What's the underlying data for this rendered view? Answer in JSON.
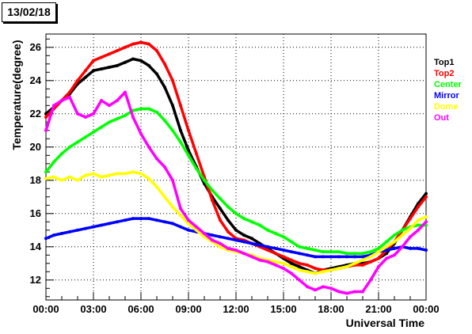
{
  "header": {
    "date": "13/02/18"
  },
  "chart_data": {
    "type": "scatter",
    "xlabel": "Universal Time",
    "ylabel": "Temperature(degree)",
    "xlim": [
      0,
      24
    ],
    "ylim": [
      10.8,
      26.8
    ],
    "grid": true,
    "legend_position": "right",
    "x_ticks": [
      0,
      3,
      6,
      9,
      12,
      15,
      18,
      21,
      24
    ],
    "x_tick_labels": [
      "00:00",
      "03:00",
      "06:00",
      "09:00",
      "12:00",
      "15:00",
      "18:00",
      "21:00",
      "00:00"
    ],
    "y_ticks": [
      12,
      14,
      16,
      18,
      20,
      22,
      24,
      26
    ],
    "y_tick_labels": [
      "12",
      "14",
      "16",
      "18",
      "20",
      "22",
      "24",
      "26"
    ],
    "series": [
      {
        "name": "Top1",
        "color": "#000000",
        "x": [
          0,
          0.5,
          1,
          1.5,
          2,
          2.5,
          3,
          3.5,
          4,
          4.5,
          5,
          5.5,
          6,
          6.5,
          7,
          7.5,
          8,
          8.5,
          9,
          9.5,
          10,
          10.5,
          11,
          11.5,
          12,
          12.5,
          13,
          13.5,
          14,
          14.5,
          15,
          15.5,
          16,
          16.5,
          17,
          17.5,
          18,
          18.5,
          19,
          19.5,
          20,
          20.5,
          21,
          21.5,
          22,
          22.5,
          23,
          23.5,
          24
        ],
        "y": [
          22.0,
          22.4,
          22.8,
          23.2,
          23.8,
          24.2,
          24.6,
          24.7,
          24.8,
          24.9,
          25.1,
          25.3,
          25.2,
          24.9,
          24.4,
          23.6,
          22.5,
          21.0,
          19.8,
          18.8,
          17.8,
          17.0,
          16.3,
          15.6,
          15.0,
          14.7,
          14.5,
          14.2,
          13.9,
          13.6,
          13.3,
          13.0,
          12.8,
          12.6,
          12.4,
          12.6,
          12.7,
          12.8,
          12.9,
          13.0,
          13.0,
          13.1,
          13.3,
          13.6,
          14.2,
          15.0,
          15.8,
          16.6,
          17.2
        ]
      },
      {
        "name": "Top2",
        "color": "#ff0000",
        "x": [
          0,
          0.5,
          1,
          1.5,
          2,
          2.5,
          3,
          3.5,
          4,
          4.5,
          5,
          5.5,
          6,
          6.5,
          7,
          7.5,
          8,
          8.5,
          9,
          9.5,
          10,
          10.5,
          11,
          11.5,
          12,
          12.5,
          13,
          13.5,
          14,
          14.5,
          15,
          15.5,
          16,
          16.5,
          17,
          17.5,
          18,
          18.5,
          19,
          19.5,
          20,
          20.5,
          21,
          21.5,
          22,
          22.5,
          23,
          23.5,
          24
        ],
        "y": [
          21.8,
          22.3,
          22.8,
          23.3,
          24.0,
          24.6,
          25.2,
          25.4,
          25.6,
          25.8,
          26.0,
          26.2,
          26.3,
          26.2,
          25.8,
          25.0,
          24.0,
          22.5,
          21.0,
          19.6,
          18.2,
          16.8,
          15.6,
          14.9,
          14.5,
          14.4,
          14.2,
          14.0,
          13.8,
          13.6,
          13.4,
          13.2,
          13.0,
          12.9,
          12.7,
          12.6,
          12.6,
          12.7,
          12.8,
          12.9,
          12.9,
          13.1,
          13.3,
          13.8,
          14.3,
          15.0,
          15.7,
          16.4,
          17.0
        ]
      },
      {
        "name": "Center",
        "color": "#00ff00",
        "x": [
          0,
          0.5,
          1,
          1.5,
          2,
          2.5,
          3,
          3.5,
          4,
          4.5,
          5,
          5.5,
          6,
          6.5,
          7,
          7.5,
          8,
          8.5,
          9,
          9.5,
          10,
          10.5,
          11,
          11.5,
          12,
          12.5,
          13,
          13.5,
          14,
          14.5,
          15,
          15.5,
          16,
          16.5,
          17,
          17.5,
          18,
          18.5,
          19,
          19.5,
          20,
          20.5,
          21,
          21.5,
          22,
          22.5,
          23,
          23.5,
          24
        ],
        "y": [
          18.5,
          19.1,
          19.6,
          20.0,
          20.3,
          20.6,
          20.9,
          21.2,
          21.5,
          21.7,
          21.9,
          22.2,
          22.3,
          22.3,
          22.1,
          21.6,
          21.0,
          20.3,
          19.5,
          18.7,
          18.0,
          17.4,
          16.9,
          16.4,
          16.0,
          15.7,
          15.5,
          15.3,
          15.0,
          14.8,
          14.6,
          14.3,
          14.0,
          13.9,
          13.8,
          13.7,
          13.7,
          13.7,
          13.6,
          13.6,
          13.6,
          13.7,
          13.9,
          14.3,
          14.7,
          15.0,
          15.2,
          15.3,
          15.3
        ]
      },
      {
        "name": "Mirror",
        "color": "#0000ff",
        "x": [
          0,
          0.5,
          1,
          1.5,
          2,
          2.5,
          3,
          3.5,
          4,
          4.5,
          5,
          5.5,
          6,
          6.5,
          7,
          7.5,
          8,
          8.5,
          9,
          9.5,
          10,
          10.5,
          11,
          11.5,
          12,
          12.5,
          13,
          13.5,
          14,
          14.5,
          15,
          15.5,
          16,
          16.5,
          17,
          17.5,
          18,
          18.5,
          19,
          19.5,
          20,
          20.5,
          21,
          21.5,
          22,
          22.5,
          23,
          23.5,
          24
        ],
        "y": [
          14.5,
          14.7,
          14.8,
          14.9,
          15.0,
          15.1,
          15.2,
          15.3,
          15.4,
          15.5,
          15.6,
          15.7,
          15.7,
          15.7,
          15.6,
          15.5,
          15.4,
          15.2,
          15.0,
          14.9,
          14.8,
          14.7,
          14.6,
          14.5,
          14.4,
          14.3,
          14.2,
          14.1,
          14.0,
          13.9,
          13.8,
          13.7,
          13.6,
          13.5,
          13.4,
          13.4,
          13.4,
          13.4,
          13.4,
          13.4,
          13.4,
          13.5,
          13.7,
          13.8,
          13.9,
          14.0,
          13.9,
          13.9,
          13.8
        ]
      },
      {
        "name": "Dome",
        "color": "#ffff00",
        "x": [
          0,
          0.5,
          1,
          1.5,
          2,
          2.5,
          3,
          3.5,
          4,
          4.5,
          5,
          5.5,
          6,
          6.5,
          7,
          7.5,
          8,
          8.5,
          9,
          9.5,
          10,
          10.5,
          11,
          11.5,
          12,
          12.5,
          13,
          13.5,
          14,
          14.5,
          15,
          15.5,
          16,
          16.5,
          17,
          17.5,
          18,
          18.5,
          19,
          19.5,
          20,
          20.5,
          21,
          21.5,
          22,
          22.5,
          23,
          23.5,
          24
        ],
        "y": [
          18.1,
          18.2,
          18.0,
          18.2,
          18.0,
          18.3,
          18.4,
          18.2,
          18.3,
          18.4,
          18.4,
          18.5,
          18.4,
          18.1,
          17.6,
          17.0,
          16.4,
          15.9,
          15.4,
          15.0,
          14.6,
          14.3,
          14.0,
          13.8,
          13.7,
          13.6,
          13.5,
          13.3,
          13.2,
          13.1,
          13.0,
          12.8,
          12.6,
          12.5,
          12.4,
          12.5,
          12.6,
          12.7,
          12.8,
          13.0,
          13.2,
          13.4,
          13.7,
          14.0,
          14.3,
          14.7,
          15.1,
          15.6,
          15.8
        ]
      },
      {
        "name": "Out",
        "color": "#ff00ff",
        "x": [
          0,
          0.5,
          1,
          1.5,
          2,
          2.5,
          3,
          3.5,
          4,
          4.5,
          5,
          5.5,
          6,
          6.5,
          7,
          7.5,
          8,
          8.5,
          9,
          9.5,
          10,
          10.5,
          11,
          11.5,
          12,
          12.5,
          13,
          13.5,
          14,
          14.5,
          15,
          15.5,
          16,
          16.5,
          17,
          17.5,
          18,
          18.5,
          19,
          19.5,
          20,
          20.5,
          21,
          21.5,
          22,
          22.5,
          23,
          23.5,
          24
        ],
        "y": [
          21.0,
          22.5,
          22.8,
          23.0,
          22.0,
          21.8,
          22.0,
          22.8,
          22.5,
          22.8,
          23.3,
          21.8,
          20.8,
          20.0,
          19.3,
          18.8,
          18.0,
          16.3,
          15.6,
          15.2,
          14.8,
          14.4,
          14.2,
          13.9,
          13.8,
          13.6,
          13.4,
          13.2,
          13.1,
          12.9,
          12.7,
          12.4,
          12.0,
          11.6,
          11.4,
          11.6,
          11.5,
          11.3,
          11.2,
          11.3,
          11.3,
          12.0,
          12.8,
          13.3,
          13.5,
          14.0,
          14.6,
          15.0,
          15.5
        ]
      }
    ]
  }
}
